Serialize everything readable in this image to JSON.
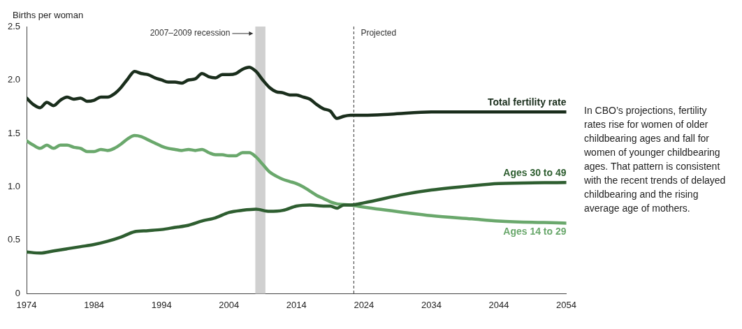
{
  "chart_data": {
    "type": "line",
    "ylabel": "Births per woman",
    "xlim": [
      1974,
      2054
    ],
    "xticks": [
      1974,
      1984,
      1994,
      2004,
      2014,
      2024,
      2034,
      2044,
      2054
    ],
    "ylim": [
      0,
      2.5
    ],
    "yticks": [
      0,
      0.5,
      {
        "value": 1,
        "label": "1.0"
      },
      1.5,
      {
        "value": 2,
        "label": "2.0"
      },
      2.5
    ],
    "grid": false,
    "legend": false,
    "marker": "none",
    "line_style": "solid",
    "bands": [
      {
        "axis": "x",
        "from": 2007.9,
        "to": 2009.4,
        "label": "2007–2009 recession",
        "color": "#d0d0d0"
      }
    ],
    "ref_lines": [
      {
        "axis": "x",
        "value": 2022.5,
        "label": "Projected",
        "line_style": "dashed",
        "color": "#333333"
      }
    ],
    "annotations": [
      "In CBO’s projections, fertility rates rise for women of older childbearing ages and fall for women of younger childbearing ages. That pattern is consistent with the recent trends of delayed childbearing and the rising average age of mothers."
    ],
    "series": [
      {
        "name": "Total fertility rate",
        "color": "#1a2e1c",
        "x": [
          1974,
          1975,
          1976,
          1977,
          1978,
          1979,
          1980,
          1981,
          1982,
          1983,
          1984,
          1985,
          1986,
          1987,
          1988,
          1989,
          1990,
          1991,
          1992,
          1993,
          1994,
          1995,
          1996,
          1997,
          1998,
          1999,
          2000,
          2001,
          2002,
          2003,
          2004,
          2005,
          2006,
          2007,
          2008,
          2009,
          2010,
          2011,
          2012,
          2013,
          2014,
          2015,
          2016,
          2017,
          2018,
          2019,
          2020,
          2021,
          2022,
          2024,
          2028,
          2034,
          2044,
          2054
        ],
        "values": [
          1.83,
          1.77,
          1.74,
          1.79,
          1.76,
          1.81,
          1.84,
          1.82,
          1.83,
          1.8,
          1.81,
          1.84,
          1.84,
          1.87,
          1.93,
          2.01,
          2.08,
          2.06,
          2.05,
          2.02,
          2.0,
          1.98,
          1.98,
          1.97,
          2.0,
          2.01,
          2.06,
          2.03,
          2.02,
          2.05,
          2.05,
          2.06,
          2.1,
          2.12,
          2.08,
          2.0,
          1.93,
          1.89,
          1.88,
          1.86,
          1.86,
          1.84,
          1.82,
          1.77,
          1.73,
          1.71,
          1.64,
          1.66,
          1.67,
          1.67,
          1.68,
          1.7,
          1.7,
          1.7
        ]
      },
      {
        "name": "Ages 30 to 49",
        "color": "#2e5e30",
        "x": [
          1974,
          1976,
          1978,
          1980,
          1982,
          1984,
          1986,
          1988,
          1990,
          1992,
          1994,
          1996,
          1998,
          2000,
          2002,
          2004,
          2006,
          2008,
          2010,
          2012,
          2014,
          2016,
          2018,
          2019,
          2020,
          2021,
          2022,
          2024,
          2030,
          2034,
          2040,
          2044,
          2054
        ],
        "values": [
          0.39,
          0.38,
          0.4,
          0.42,
          0.44,
          0.46,
          0.49,
          0.53,
          0.58,
          0.59,
          0.6,
          0.62,
          0.64,
          0.68,
          0.71,
          0.76,
          0.78,
          0.79,
          0.77,
          0.78,
          0.82,
          0.83,
          0.82,
          0.82,
          0.8,
          0.83,
          0.83,
          0.85,
          0.93,
          0.97,
          1.01,
          1.03,
          1.04
        ]
      },
      {
        "name": "Ages 14 to 29",
        "color": "#6aa86c",
        "x": [
          1974,
          1975,
          1976,
          1977,
          1978,
          1979,
          1980,
          1981,
          1982,
          1983,
          1984,
          1985,
          1986,
          1987,
          1988,
          1989,
          1990,
          1991,
          1992,
          1993,
          1994,
          1995,
          1996,
          1997,
          1998,
          1999,
          2000,
          2001,
          2002,
          2003,
          2004,
          2005,
          2006,
          2007,
          2008,
          2009,
          2010,
          2011,
          2012,
          2013,
          2014,
          2015,
          2016,
          2017,
          2018,
          2019,
          2020,
          2022,
          2024,
          2030,
          2034,
          2040,
          2044,
          2054
        ],
        "values": [
          1.43,
          1.39,
          1.36,
          1.39,
          1.36,
          1.39,
          1.39,
          1.37,
          1.36,
          1.33,
          1.33,
          1.35,
          1.34,
          1.36,
          1.4,
          1.45,
          1.48,
          1.47,
          1.44,
          1.41,
          1.38,
          1.36,
          1.35,
          1.34,
          1.35,
          1.34,
          1.35,
          1.32,
          1.3,
          1.3,
          1.29,
          1.29,
          1.32,
          1.32,
          1.28,
          1.21,
          1.14,
          1.1,
          1.07,
          1.05,
          1.03,
          1.0,
          0.96,
          0.92,
          0.89,
          0.86,
          0.84,
          0.83,
          0.81,
          0.76,
          0.73,
          0.7,
          0.68,
          0.66
        ]
      }
    ]
  }
}
